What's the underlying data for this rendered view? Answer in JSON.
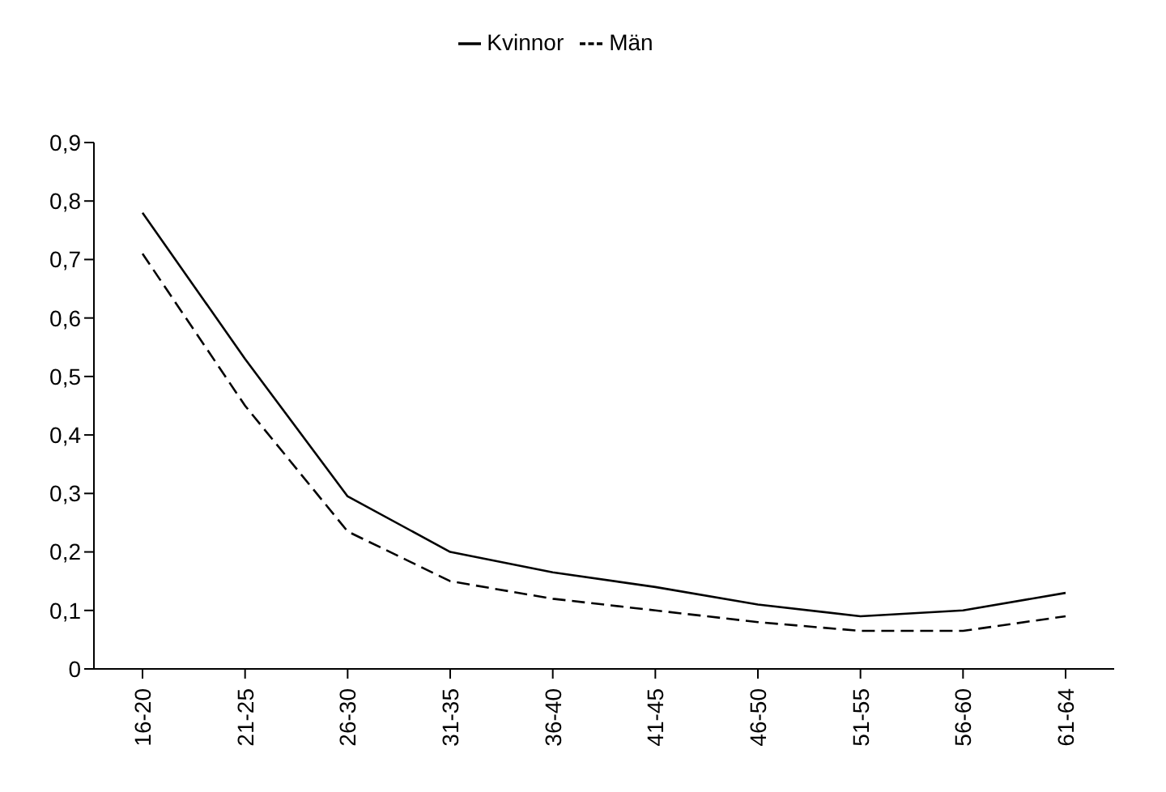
{
  "chart_data": {
    "type": "line",
    "categories": [
      "16-20",
      "21-25",
      "26-30",
      "31-35",
      "36-40",
      "41-45",
      "46-50",
      "51-55",
      "56-60",
      "61-64"
    ],
    "series": [
      {
        "name": "Kvinnor",
        "color": "#000000",
        "line_style": "solid",
        "values": [
          0.78,
          0.53,
          0.295,
          0.2,
          0.165,
          0.14,
          0.11,
          0.09,
          0.1,
          0.13
        ]
      },
      {
        "name": "Män",
        "color": "#000000",
        "line_style": "dashed",
        "values": [
          0.71,
          0.45,
          0.235,
          0.15,
          0.12,
          0.1,
          0.08,
          0.065,
          0.065,
          0.09
        ]
      }
    ],
    "ylim": [
      0,
      0.9
    ],
    "yticks": [
      {
        "value": 0,
        "label": "0"
      },
      {
        "value": 0.1,
        "label": "0,1"
      },
      {
        "value": 0.2,
        "label": "0,2"
      },
      {
        "value": 0.3,
        "label": "0,3"
      },
      {
        "value": 0.4,
        "label": "0,4"
      },
      {
        "value": 0.5,
        "label": "0,5"
      },
      {
        "value": 0.6,
        "label": "0,6"
      },
      {
        "value": 0.7,
        "label": "0,7"
      },
      {
        "value": 0.8,
        "label": "0,8"
      },
      {
        "value": 0.9,
        "label": "0,9"
      }
    ],
    "grid": false,
    "legend": "top",
    "marker": "none"
  }
}
